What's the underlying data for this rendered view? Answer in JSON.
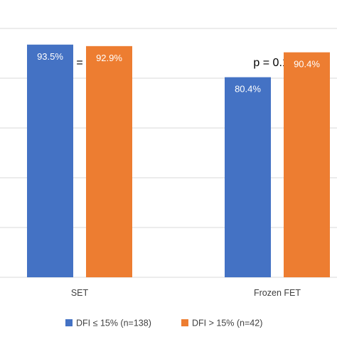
{
  "chart_data": {
    "type": "bar",
    "title": "",
    "xlabel": "",
    "ylabel": "",
    "ylim": [
      0,
      100
    ],
    "grid": true,
    "legend_position": "bottom",
    "categories": [
      "SET",
      "Frozen FET"
    ],
    "series": [
      {
        "name": "DFI ≤ 15% (n=138)",
        "color": "#4472C4",
        "values": [
          93.5,
          80.4
        ],
        "labels": [
          "93.5%",
          "80.4%"
        ]
      },
      {
        "name": "DFI > 15% (n=42)",
        "color": "#ED7D31",
        "values": [
          92.9,
          90.4
        ],
        "labels": [
          "92.9%",
          "90.4%"
        ]
      }
    ],
    "annotations": [
      "p = 1",
      "p = 0.164"
    ]
  }
}
